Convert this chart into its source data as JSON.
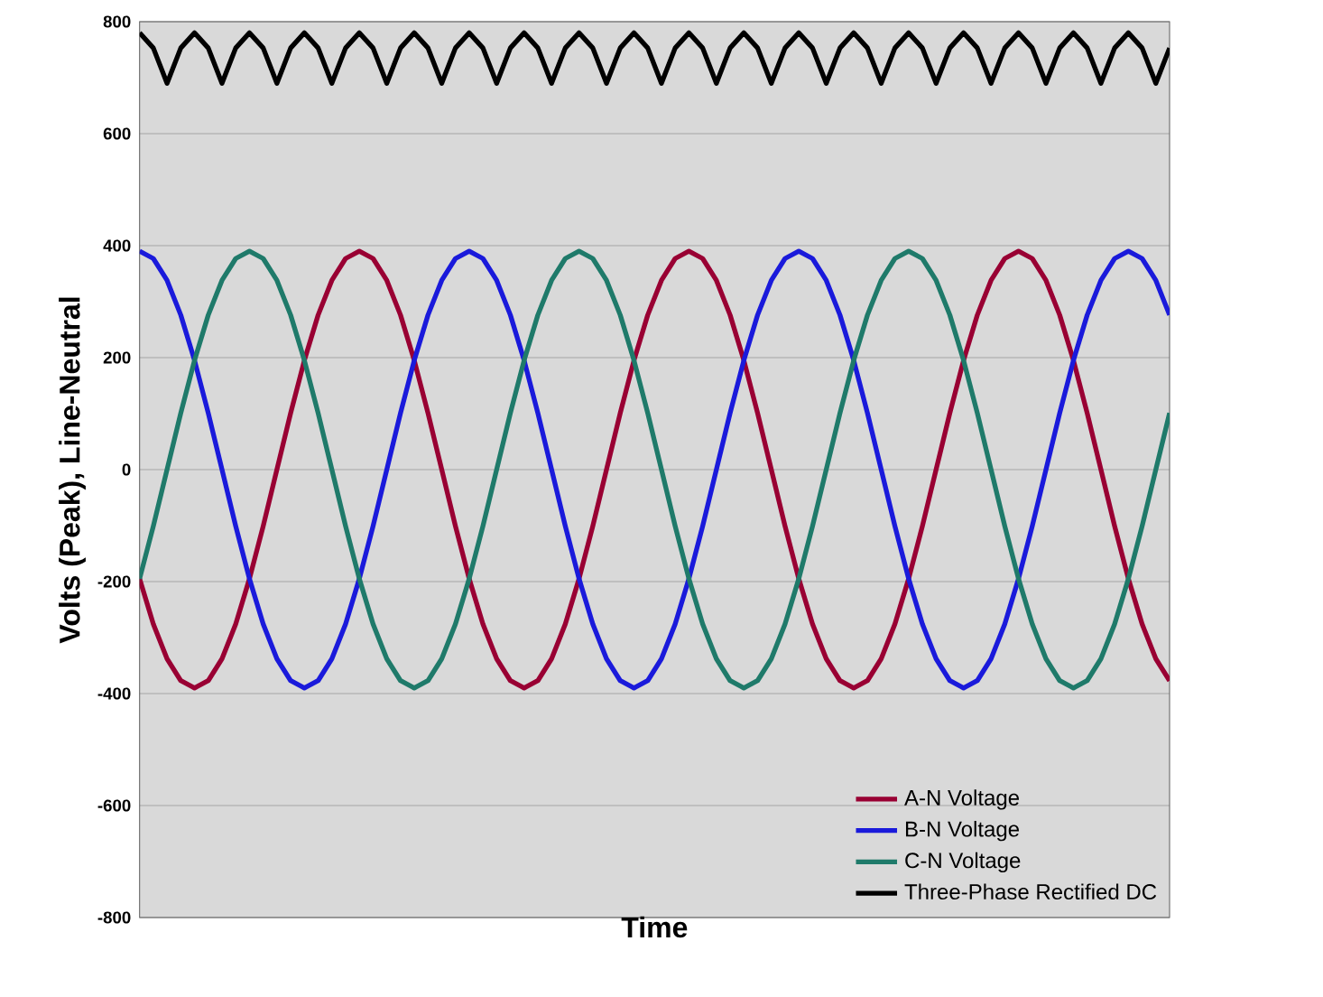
{
  "chart_data": {
    "type": "line",
    "xlabel": "Time",
    "ylabel": "Volts (Peak), Line-Neutral",
    "categories": [
      null,
      null,
      null,
      null,
      null,
      null,
      null,
      null,
      null,
      null,
      null,
      null,
      null,
      null,
      null,
      null,
      null,
      null,
      null,
      null,
      null,
      null,
      null,
      null,
      null,
      null,
      null,
      null,
      null,
      null,
      null,
      null,
      null,
      null,
      null,
      null,
      null,
      null,
      null,
      null,
      null,
      null,
      null,
      null,
      null,
      null,
      null,
      null,
      null,
      null,
      null,
      null,
      null,
      null,
      null,
      null,
      null,
      null,
      null,
      null,
      null,
      null,
      null,
      null,
      null,
      null,
      null,
      null,
      null,
      null,
      null,
      null,
      null,
      null,
      null,
      null
    ],
    "series": [
      {
        "name": "A-N Voltage",
        "color": "#990033",
        "values": [
          -195,
          -276,
          -338,
          -377,
          -390,
          -377,
          -338,
          -276,
          -195,
          -101,
          0,
          101,
          195,
          276,
          338,
          377,
          390,
          377,
          338,
          276,
          195,
          101,
          0,
          -101,
          -195,
          -276,
          -338,
          -377,
          -390,
          -377,
          -338,
          -276,
          -195,
          -101,
          0,
          101,
          195,
          276,
          338,
          377,
          390,
          377,
          338,
          276,
          195,
          101,
          0,
          -101,
          -195,
          -276,
          -338,
          -377,
          -390,
          -377,
          -338,
          -276,
          -195,
          -101,
          0,
          101,
          195,
          276,
          338,
          377,
          390,
          377,
          338,
          276,
          195,
          101,
          0,
          -101,
          -195,
          -276,
          -338,
          -377
        ]
      },
      {
        "name": "B-N Voltage",
        "color": "#1a1adb",
        "values": [
          390,
          377,
          338,
          276,
          195,
          101,
          0,
          -101,
          -195,
          -276,
          -338,
          -377,
          -390,
          -377,
          -338,
          -276,
          -195,
          -101,
          0,
          101,
          195,
          276,
          338,
          377,
          390,
          377,
          338,
          276,
          195,
          101,
          0,
          -101,
          -195,
          -276,
          -338,
          -377,
          -390,
          -377,
          -338,
          -276,
          -195,
          -101,
          0,
          101,
          195,
          276,
          338,
          377,
          390,
          377,
          338,
          276,
          195,
          101,
          0,
          -101,
          -195,
          -276,
          -338,
          -377,
          -390,
          -377,
          -338,
          -276,
          -195,
          -101,
          0,
          101,
          195,
          276,
          338,
          377,
          390,
          377,
          338,
          276
        ]
      },
      {
        "name": "C-N Voltage",
        "color": "#1f7a6a",
        "values": [
          -195,
          -101,
          0,
          101,
          195,
          276,
          338,
          377,
          390,
          377,
          338,
          276,
          195,
          101,
          0,
          -101,
          -195,
          -276,
          -338,
          -377,
          -390,
          -377,
          -338,
          -276,
          -195,
          -101,
          0,
          101,
          195,
          276,
          338,
          377,
          390,
          377,
          338,
          276,
          195,
          101,
          0,
          -101,
          -195,
          -276,
          -338,
          -377,
          -390,
          -377,
          -338,
          -276,
          -195,
          -101,
          0,
          101,
          195,
          276,
          338,
          377,
          390,
          377,
          338,
          276,
          195,
          101,
          0,
          -101,
          -195,
          -276,
          -338,
          -377,
          -390,
          -377,
          -338,
          -276,
          -195,
          -101,
          0,
          101
        ]
      },
      {
        "name": "Three-Phase Rectified DC",
        "color": "#000000",
        "values": [
          780,
          753,
          690,
          753,
          780,
          753,
          690,
          753,
          780,
          753,
          690,
          753,
          780,
          753,
          690,
          753,
          780,
          753,
          690,
          753,
          780,
          753,
          690,
          753,
          780,
          753,
          690,
          753,
          780,
          753,
          690,
          753,
          780,
          753,
          690,
          753,
          780,
          753,
          690,
          753,
          780,
          753,
          690,
          753,
          780,
          753,
          690,
          753,
          780,
          753,
          690,
          753,
          780,
          753,
          690,
          753,
          780,
          753,
          690,
          753,
          780,
          753,
          690,
          753,
          780,
          753,
          690,
          753,
          780,
          753,
          690,
          753,
          780,
          753,
          690,
          753
        ]
      }
    ],
    "ylim": [
      -800,
      800
    ],
    "yticks": [
      -800,
      -600,
      -400,
      -200,
      0,
      200,
      400,
      600,
      800
    ],
    "grid": "y",
    "legend": "bottom right",
    "tick_labels": "y",
    "line_style": "solid"
  }
}
